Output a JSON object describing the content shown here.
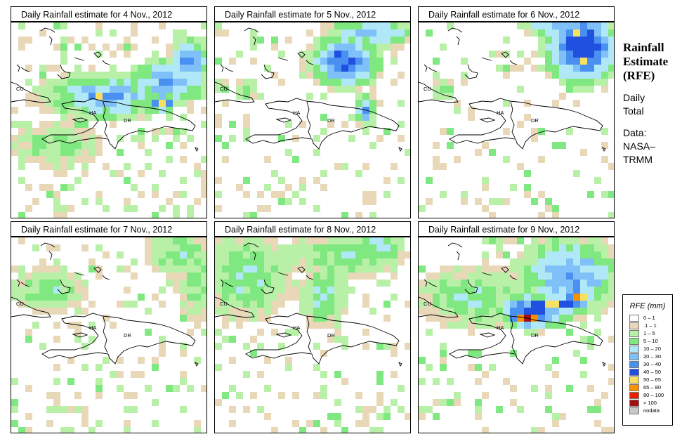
{
  "panels": [
    {
      "title": "Daily Rainfall estimate for  4 Nov., 2012",
      "day": 4
    },
    {
      "title": "Daily Rainfall estimate for  5 Nov., 2012",
      "day": 5
    },
    {
      "title": "Daily Rainfall estimate for  6 Nov., 2012",
      "day": 6
    },
    {
      "title": "Daily Rainfall estimate for  7 Nov., 2012",
      "day": 7
    },
    {
      "title": "Daily Rainfall estimate for  8 Nov., 2012",
      "day": 8
    },
    {
      "title": "Daily Rainfall estimate for  9 Nov., 2012",
      "day": 9
    }
  ],
  "map_labels": {
    "cuba": "CU",
    "haiti": "HA",
    "dominican_republic": "DR"
  },
  "side_panel": {
    "title_line1": "Rainfall",
    "title_line2": "Estimate",
    "title_line3": "(RFE)",
    "period_line1": "Daily",
    "period_line2": "Total",
    "source_line1": "Data:",
    "source_line2": "NASA–",
    "source_line3": "TRMM"
  },
  "legend": {
    "title": "RFE (mm)",
    "items": [
      {
        "label": "0 – 1",
        "color": "#ffffff"
      },
      {
        "label": ".1 – 1",
        "color": "#e8d8b8"
      },
      {
        "label": "1 – 5",
        "color": "#b8f0a8"
      },
      {
        "label": "5 – 10",
        "color": "#80e880"
      },
      {
        "label": "10 – 20",
        "color": "#b0e8f8"
      },
      {
        "label": "20 – 30",
        "color": "#80c0f8"
      },
      {
        "label": "30 – 40",
        "color": "#4a90f0"
      },
      {
        "label": "40 – 50",
        "color": "#2050e0"
      },
      {
        "label": "50 – 65",
        "color": "#f8e060"
      },
      {
        "label": "65 – 80",
        "color": "#f89000"
      },
      {
        "label": "80 – 100",
        "color": "#e82000"
      },
      {
        "label": "> 100",
        "color": "#a01010"
      },
      {
        "label": "nodata",
        "color": "#c8c8c8"
      }
    ]
  }
}
